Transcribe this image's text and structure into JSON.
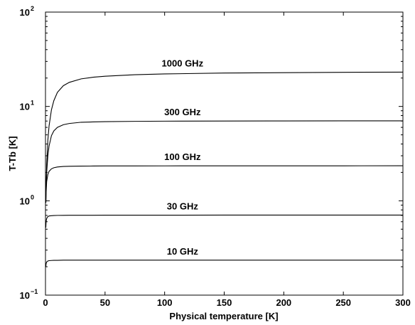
{
  "chart_data": {
    "type": "line",
    "xlabel": "Physical temperature [K]",
    "ylabel": "T-Tb [K]",
    "xlim": [
      0,
      300
    ],
    "ylim": [
      0.1,
      100
    ],
    "yscale": "log",
    "grid": false,
    "x_ticks": [
      "0",
      "50",
      "100",
      "150",
      "200",
      "250",
      "300"
    ],
    "y_ticks": [
      {
        "value": 0.1,
        "base": "10",
        "exp": "−1"
      },
      {
        "value": 1,
        "base": "10",
        "exp": "0"
      },
      {
        "value": 10,
        "base": "10",
        "exp": "1"
      },
      {
        "value": 100,
        "base": "10",
        "exp": "2"
      }
    ],
    "x": [
      0.3,
      0.5,
      1,
      2,
      3,
      5,
      7,
      10,
      15,
      20,
      30,
      40,
      50,
      75,
      100,
      150,
      200,
      250,
      300
    ],
    "series": [
      {
        "name": "1000 GHz",
        "values": [
          0.97,
          1.4,
          2.4,
          4.4,
          6.2,
          9.2,
          11.5,
          14.1,
          16.6,
          18.0,
          19.6,
          20.4,
          20.9,
          21.7,
          22.1,
          22.6,
          22.8,
          23.0,
          23.1
        ]
      },
      {
        "name": "300 GHz",
        "values": [
          0.95,
          1.3,
          2.0,
          3.0,
          3.8,
          4.9,
          5.5,
          6.0,
          6.4,
          6.6,
          6.8,
          6.85,
          6.9,
          6.95,
          6.98,
          7.0,
          7.02,
          7.03,
          7.04
        ]
      },
      {
        "name": "100 GHz",
        "values": [
          0.95,
          1.2,
          1.6,
          1.9,
          2.05,
          2.18,
          2.24,
          2.28,
          2.31,
          2.32,
          2.33,
          2.335,
          2.34,
          2.342,
          2.344,
          2.346,
          2.347,
          2.348,
          2.35
        ]
      },
      {
        "name": "30 GHz",
        "values": [
          0.52,
          0.6,
          0.65,
          0.68,
          0.69,
          0.695,
          0.698,
          0.7,
          0.701,
          0.702,
          0.703,
          0.703,
          0.704,
          0.704,
          0.704,
          0.705,
          0.705,
          0.705,
          0.705
        ]
      },
      {
        "name": "10 GHz",
        "values": [
          0.2,
          0.215,
          0.225,
          0.23,
          0.232,
          0.233,
          0.234,
          0.234,
          0.235,
          0.235,
          0.235,
          0.235,
          0.235,
          0.235,
          0.235,
          0.235,
          0.235,
          0.235,
          0.235
        ]
      }
    ]
  }
}
